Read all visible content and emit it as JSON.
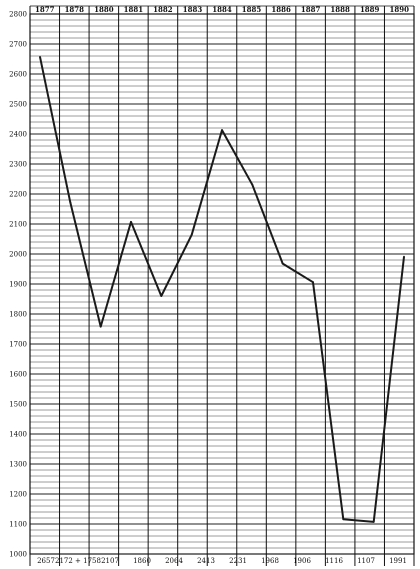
{
  "chart_data": {
    "type": "line",
    "title": "",
    "xlabel": "",
    "ylabel": "",
    "years": [
      "1877",
      "1878",
      "1880",
      "1881",
      "1882",
      "1883",
      "1884",
      "1885",
      "1886",
      "1887",
      "1888",
      "1889",
      "1890"
    ],
    "bottom_labels": [
      "2657",
      "2172 + 1758",
      "2107",
      "1860",
      "2064",
      "2413",
      "2231",
      "1968",
      "1906",
      "1116",
      "1107",
      "1991"
    ],
    "ylim": [
      1000,
      2800
    ],
    "yticks": [
      1000,
      1100,
      1200,
      1300,
      1400,
      1500,
      1600,
      1700,
      1800,
      1900,
      2000,
      2100,
      2200,
      2300,
      2400,
      2500,
      2600,
      2700,
      2800
    ],
    "series": [
      {
        "values": [
          2657,
          2172,
          1758,
          2107,
          1860,
          2064,
          2413,
          2231,
          1968,
          1906,
          1116,
          1107,
          1991
        ]
      }
    ],
    "line_color": "#1a1a1a",
    "grid": true
  }
}
